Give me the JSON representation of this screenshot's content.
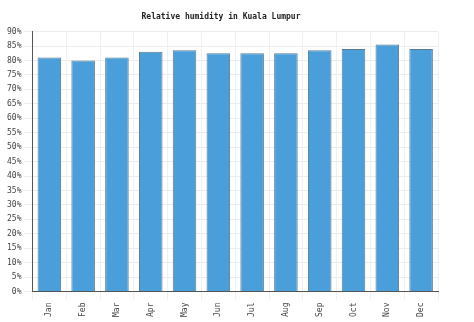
{
  "chart_data": {
    "type": "bar",
    "title": "Relative humidity in Kuala Lumpur",
    "categories": [
      "Jan",
      "Feb",
      "Mar",
      "Apr",
      "May",
      "Jun",
      "Jul",
      "Aug",
      "Sep",
      "Oct",
      "Nov",
      "Dec"
    ],
    "values": [
      81,
      80,
      81,
      83,
      83.5,
      82.5,
      82.5,
      82.5,
      83.5,
      84,
      85.5,
      84
    ],
    "color": "#4a9fdb",
    "ylim": [
      0,
      90
    ],
    "yticks": [
      {
        "value": 0,
        "label": "0%"
      },
      {
        "value": 5,
        "label": "5%"
      },
      {
        "value": 10,
        "label": "10%"
      },
      {
        "value": 15,
        "label": "15%"
      },
      {
        "value": 20,
        "label": "20%"
      },
      {
        "value": 25,
        "label": "25%"
      },
      {
        "value": 30,
        "label": "30%"
      },
      {
        "value": 35,
        "label": "35%"
      },
      {
        "value": 40,
        "label": "40%"
      },
      {
        "value": 45,
        "label": "45%"
      },
      {
        "value": 50,
        "label": "50%"
      },
      {
        "value": 55,
        "label": "55%"
      },
      {
        "value": 60,
        "label": "60%"
      },
      {
        "value": 65,
        "label": "65%"
      },
      {
        "value": 70,
        "label": "70%"
      },
      {
        "value": 75,
        "label": "75%"
      },
      {
        "value": 80,
        "label": "80%"
      },
      {
        "value": 85,
        "label": "85%"
      },
      {
        "value": 90,
        "label": "90%"
      }
    ],
    "grid": true
  }
}
